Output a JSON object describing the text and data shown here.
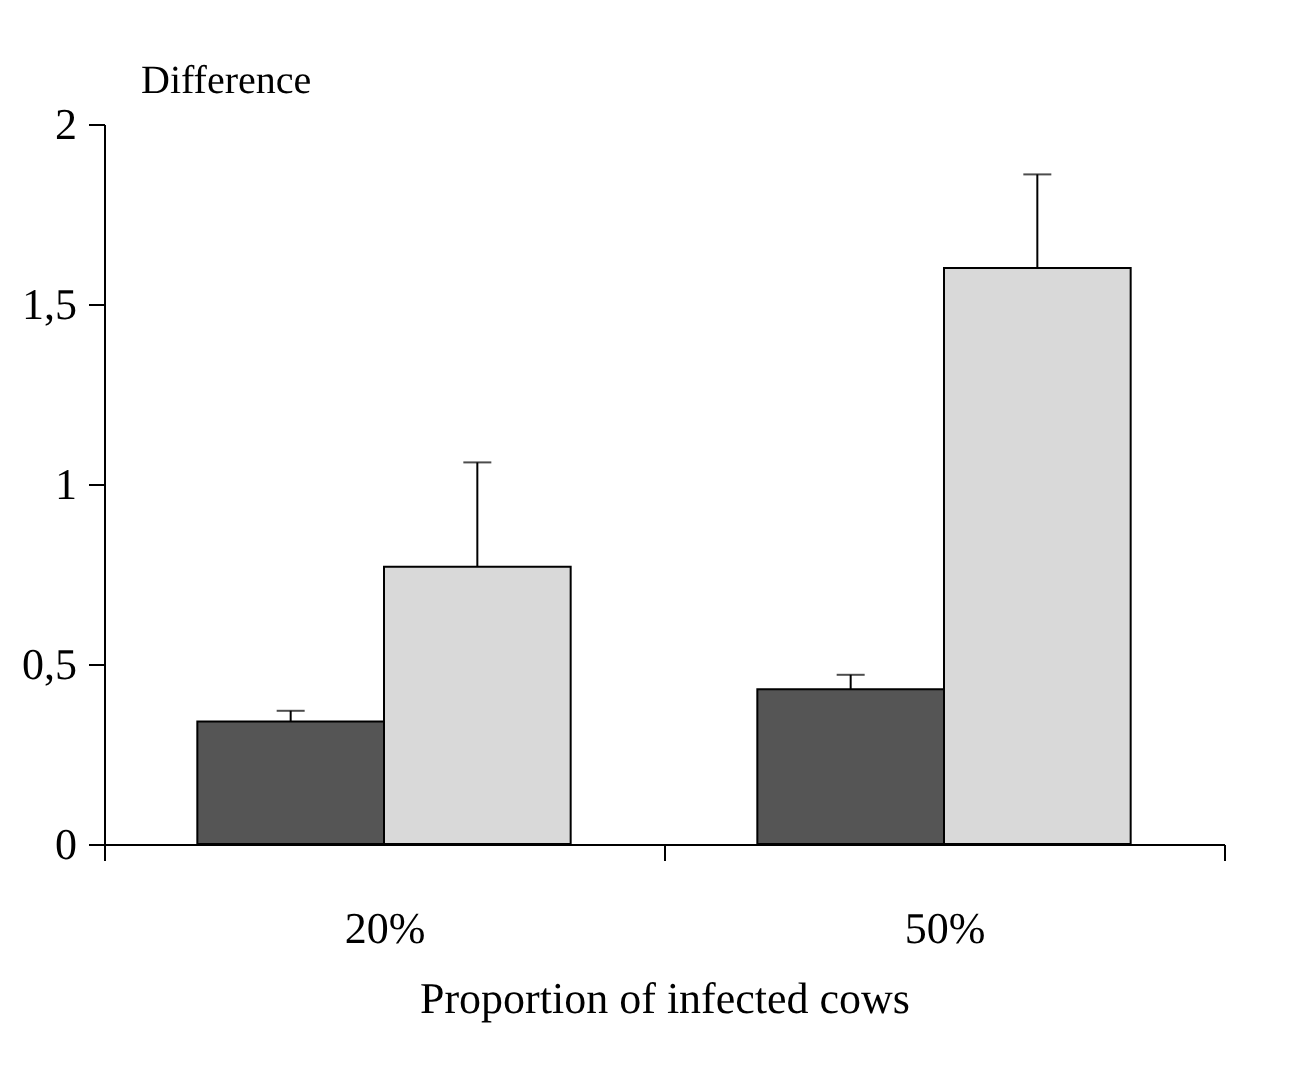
{
  "chart_data": {
    "type": "bar",
    "ylabel": "Difference",
    "xlabel": "Proportion of infected cows",
    "categories": [
      "20%",
      "50%"
    ],
    "series": [
      {
        "color": "#555555",
        "values": [
          0.34,
          0.43
        ],
        "errors": [
          [
            0.34,
            0.37
          ],
          [
            0.43,
            0.47
          ]
        ]
      },
      {
        "color": "#d9d9d9",
        "values": [
          0.77,
          1.6
        ],
        "errors": [
          [
            0.77,
            1.06
          ],
          [
            1.6,
            1.86
          ]
        ]
      }
    ],
    "ylim": [
      0,
      2
    ],
    "yticks": [
      0,
      {
        "value": 0.5,
        "label": "0,5"
      },
      1,
      {
        "value": 1.5,
        "label": "1,5"
      },
      2
    ],
    "grid": false,
    "legend": false
  }
}
